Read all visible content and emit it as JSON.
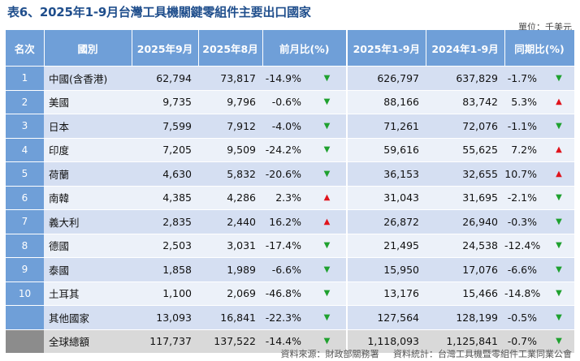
{
  "title": "表6、2025年1-9月台灣工具機關鍵零組件主要出口國家",
  "unit": "單位：千美元",
  "headers": [
    "名次",
    "國別",
    "2025年9月",
    "2025年8月",
    "前月比(%)",
    "2025年1-9月",
    "2024年1-9月",
    "同期比(%)"
  ],
  "rows": [
    {
      "rank": "1",
      "country": "中國(含香港)",
      "sep2025": "62,794",
      "aug2025": "73,817",
      "mom": "-14.9%",
      "mom_dir": "down",
      "ytd2025": "626,797",
      "ytd2024": "637,829",
      "yoy": "-1.7%",
      "yoy_dir": "down"
    },
    {
      "rank": "2",
      "country": "美國",
      "sep2025": "9,735",
      "aug2025": "9,796",
      "mom": "-0.6%",
      "mom_dir": "down",
      "ytd2025": "88,166",
      "ytd2024": "83,742",
      "yoy": "5.3%",
      "yoy_dir": "up"
    },
    {
      "rank": "3",
      "country": "日本",
      "sep2025": "7,599",
      "aug2025": "7,912",
      "mom": "-4.0%",
      "mom_dir": "down",
      "ytd2025": "71,261",
      "ytd2024": "72,076",
      "yoy": "-1.1%",
      "yoy_dir": "down"
    },
    {
      "rank": "4",
      "country": "印度",
      "sep2025": "7,205",
      "aug2025": "9,509",
      "mom": "-24.2%",
      "mom_dir": "down",
      "ytd2025": "59,616",
      "ytd2024": "55,625",
      "yoy": "7.2%",
      "yoy_dir": "up"
    },
    {
      "rank": "5",
      "country": "荷蘭",
      "sep2025": "4,630",
      "aug2025": "5,832",
      "mom": "-20.6%",
      "mom_dir": "down",
      "ytd2025": "36,153",
      "ytd2024": "32,655",
      "yoy": "10.7%",
      "yoy_dir": "up"
    },
    {
      "rank": "6",
      "country": "南韓",
      "sep2025": "4,385",
      "aug2025": "4,286",
      "mom": "2.3%",
      "mom_dir": "up",
      "ytd2025": "31,043",
      "ytd2024": "31,695",
      "yoy": "-2.1%",
      "yoy_dir": "down"
    },
    {
      "rank": "7",
      "country": "義大利",
      "sep2025": "2,835",
      "aug2025": "2,440",
      "mom": "16.2%",
      "mom_dir": "up",
      "ytd2025": "26,872",
      "ytd2024": "26,940",
      "yoy": "-0.3%",
      "yoy_dir": "down"
    },
    {
      "rank": "8",
      "country": "德國",
      "sep2025": "2,503",
      "aug2025": "3,031",
      "mom": "-17.4%",
      "mom_dir": "down",
      "ytd2025": "21,495",
      "ytd2024": "24,538",
      "yoy": "-12.4%",
      "yoy_dir": "down"
    },
    {
      "rank": "9",
      "country": "泰國",
      "sep2025": "1,858",
      "aug2025": "1,989",
      "mom": "-6.6%",
      "mom_dir": "down",
      "ytd2025": "15,950",
      "ytd2024": "17,076",
      "yoy": "-6.6%",
      "yoy_dir": "down"
    },
    {
      "rank": "10",
      "country": "土耳其",
      "sep2025": "1,100",
      "aug2025": "2,069",
      "mom": "-46.8%",
      "mom_dir": "down",
      "ytd2025": "13,176",
      "ytd2024": "15,466",
      "yoy": "-14.8%",
      "yoy_dir": "down"
    },
    {
      "rank": "",
      "country": "其他國家",
      "sep2025": "13,093",
      "aug2025": "16,841",
      "mom": "-22.3%",
      "mom_dir": "down",
      "ytd2025": "127,564",
      "ytd2024": "128,199",
      "yoy": "-0.5%",
      "yoy_dir": "down"
    },
    {
      "rank": "",
      "country": "全球總額",
      "sep2025": "117,737",
      "aug2025": "137,522",
      "mom": "-14.4%",
      "mom_dir": "down",
      "ytd2025": "1,118,093",
      "ytd2024": "1,125,841",
      "yoy": "-0.7%",
      "yoy_dir": "down"
    }
  ],
  "arrows": {
    "up": "▲",
    "down": "▼"
  },
  "colors": {
    "header_bg": "#6f9fd8",
    "row_odd": "#d5dff2",
    "row_even": "#ecf1f9",
    "total_row": "#d9d9d9",
    "up": "#e0141c",
    "down": "#1fa12f",
    "title": "#1f4e8c"
  },
  "source": {
    "data_source": "資料來源：財政部關務署",
    "compiled_by": "資料統計：台灣工具機暨零組件工業同業公會"
  }
}
